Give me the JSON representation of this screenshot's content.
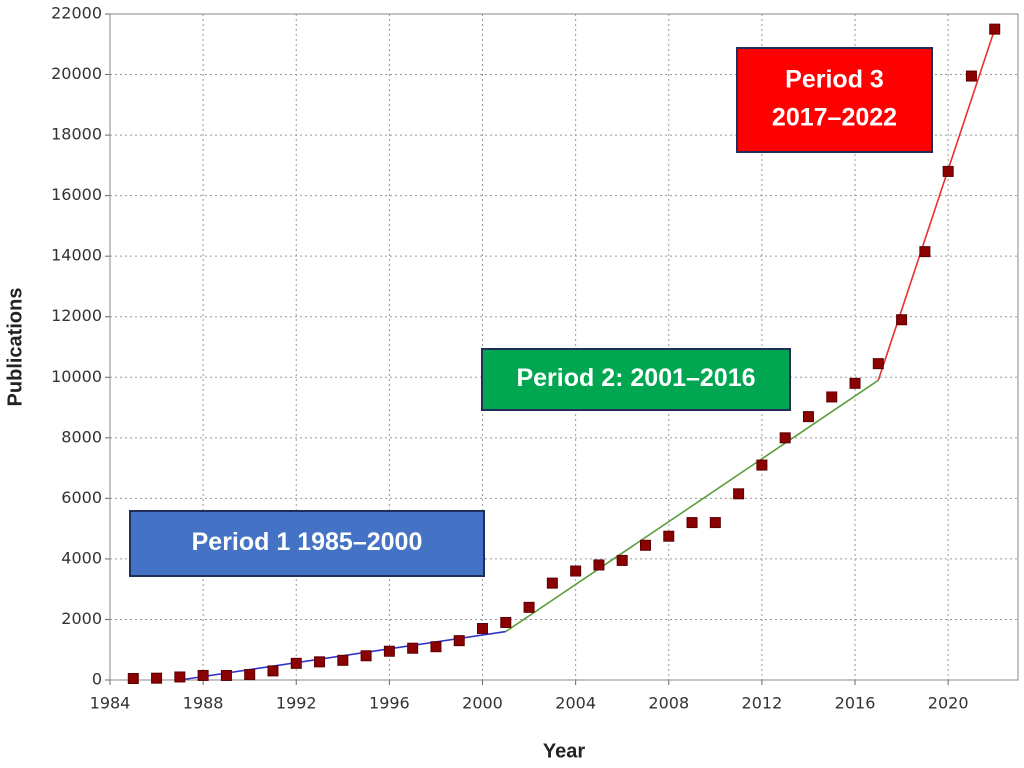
{
  "chart_data": {
    "type": "scatter",
    "x_label": "Year",
    "y_label": "Publications",
    "x": [
      1985,
      1986,
      1987,
      1988,
      1989,
      1990,
      1991,
      1992,
      1993,
      1994,
      1995,
      1996,
      1997,
      1998,
      1999,
      2000,
      2001,
      2002,
      2003,
      2004,
      2005,
      2006,
      2007,
      2008,
      2009,
      2010,
      2011,
      2012,
      2013,
      2014,
      2015,
      2016,
      2017,
      2018,
      2019,
      2020,
      2021,
      2022
    ],
    "values": [
      50,
      60,
      100,
      150,
      150,
      180,
      300,
      550,
      600,
      650,
      800,
      950,
      1050,
      1100,
      1300,
      1700,
      1900,
      2400,
      3200,
      3600,
      3800,
      3950,
      4450,
      4750,
      5200,
      5200,
      6150,
      7100,
      8000,
      8700,
      9350,
      9800,
      10450,
      11900,
      14150,
      16800,
      19950,
      21500
    ],
    "color": "#8b0000",
    "fit_lines": [
      {
        "x": [
          1987,
          2001
        ],
        "values": [
          0,
          1600
        ],
        "color": "#3333cc"
      },
      {
        "x": [
          2001,
          2017
        ],
        "values": [
          1600,
          9900
        ],
        "color": "#5a9e3a"
      },
      {
        "x": [
          2017,
          2022
        ],
        "values": [
          9900,
          21500
        ],
        "color": "#e83030"
      }
    ],
    "annotations": [
      {
        "lines": [
          "Period 1 1985–2000"
        ],
        "color": "#4472c4"
      },
      {
        "lines": [
          "Period 2: 2001–2016"
        ],
        "color": "#00a650"
      },
      {
        "lines": [
          "Period 3",
          "2017–2022"
        ],
        "color": "#ff0000"
      }
    ],
    "xlim": [
      1984,
      2023
    ],
    "ylim": [
      0,
      22000
    ],
    "xticks": [
      1984,
      1988,
      1992,
      1996,
      2000,
      2004,
      2008,
      2012,
      2016,
      2020
    ],
    "yticks": [
      0,
      2000,
      4000,
      6000,
      8000,
      10000,
      12000,
      14000,
      16000,
      18000,
      20000,
      22000
    ],
    "grid": true
  }
}
